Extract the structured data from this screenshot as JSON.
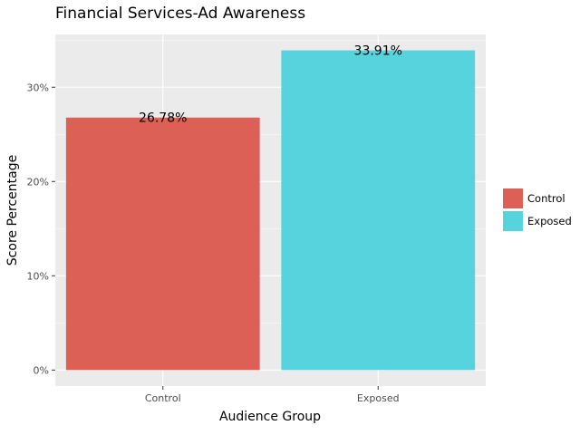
{
  "chart_data": {
    "type": "bar",
    "title": "Financial Services-Ad Awareness",
    "xlabel": "Audience Group",
    "ylabel": "Score Percentage",
    "categories": [
      "Control",
      "Exposed"
    ],
    "values": [
      26.78,
      33.91
    ],
    "data_labels": [
      "26.78%",
      "33.91%"
    ],
    "colors": [
      "#dc6055",
      "#56d3dc"
    ],
    "ylim": [
      -1.7,
      35.6
    ],
    "yticks": [
      0,
      10,
      20,
      30
    ],
    "ytick_labels": [
      "0%",
      "10%",
      "20%",
      "30%"
    ],
    "grid": true,
    "legend": {
      "position": "right",
      "entries": [
        "Control",
        "Exposed"
      ]
    }
  }
}
